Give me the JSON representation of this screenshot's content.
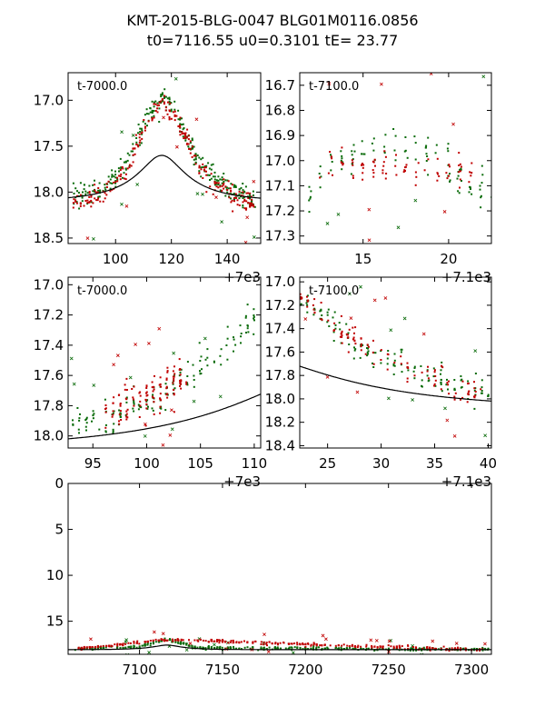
{
  "title": {
    "line1": "KMT-2015-BLG-0047 BLG01M0116.0856",
    "line2": "t0=7116.55 u0=0.3101 tE=  23.77"
  },
  "colors": {
    "green": "#0a6b0a",
    "red": "#c00000",
    "model": "#000000"
  },
  "chart_data": [
    {
      "type": "scatter",
      "panel_label": "t-7000.0",
      "offset_label": "+7e3",
      "x_range": [
        83,
        152
      ],
      "y_range": [
        18.56,
        16.7
      ],
      "y_inverted": true,
      "xticks": [
        100,
        120,
        140
      ],
      "yticks": [
        17.0,
        17.5,
        18.0,
        18.5
      ],
      "ytick_labels": [
        "17.0",
        "17.5",
        "18.0",
        "18.5"
      ],
      "series": [
        {
          "color": "green",
          "approx_trend": [
            [
              85,
              18.05
            ],
            [
              95,
              18.0
            ],
            [
              105,
              17.65
            ],
            [
              112,
              17.15
            ],
            [
              117,
              16.95
            ],
            [
              122,
              17.15
            ],
            [
              130,
              17.7
            ],
            [
              140,
              17.95
            ],
            [
              150,
              18.1
            ]
          ]
        },
        {
          "color": "red",
          "approx_trend": [
            [
              85,
              18.1
            ],
            [
              95,
              18.05
            ],
            [
              105,
              17.7
            ],
            [
              112,
              17.2
            ],
            [
              117,
              17.0
            ],
            [
              122,
              17.2
            ],
            [
              130,
              17.75
            ],
            [
              140,
              18.0
            ],
            [
              150,
              18.15
            ]
          ]
        }
      ]
    },
    {
      "type": "scatter",
      "panel_label": "t-7100.0",
      "offset_label": "+7.1e3",
      "x_range": [
        11.3,
        22.5
      ],
      "y_range": [
        17.33,
        16.65
      ],
      "y_inverted": true,
      "xticks": [
        15,
        20
      ],
      "yticks": [
        16.7,
        16.8,
        16.9,
        17.0,
        17.1,
        17.2,
        17.3
      ],
      "ytick_labels": [
        "16.7",
        "16.8",
        "16.9",
        "17.0",
        "17.1",
        "17.2",
        "17.3"
      ],
      "series": [
        {
          "color": "green",
          "approx_trend": [
            [
              11.5,
              17.15
            ],
            [
              13,
              17.03
            ],
            [
              15,
              16.95
            ],
            [
              17,
              16.93
            ],
            [
              19,
              16.98
            ],
            [
              21,
              17.08
            ],
            [
              22.5,
              17.15
            ]
          ]
        },
        {
          "color": "red",
          "approx_trend": [
            [
              12.5,
              17.05
            ],
            [
              13.5,
              17.02
            ],
            [
              21.5,
              17.05
            ]
          ]
        }
      ]
    },
    {
      "type": "scatter",
      "panel_label": "t-7000.0",
      "offset_label": "+7e3",
      "x_range": [
        92.7,
        110.6
      ],
      "y_range": [
        18.08,
        16.95
      ],
      "y_inverted": true,
      "xticks": [
        95,
        100,
        105,
        110
      ],
      "yticks": [
        17.0,
        17.2,
        17.4,
        17.6,
        17.8,
        18.0
      ],
      "ytick_labels": [
        "17.0",
        "17.2",
        "17.4",
        "17.6",
        "17.8",
        "18.0"
      ],
      "series": [
        {
          "color": "green",
          "approx_trend": [
            [
              93,
              17.93
            ],
            [
              96,
              17.88
            ],
            [
              100,
              17.78
            ],
            [
              103,
              17.65
            ],
            [
              106,
              17.5
            ],
            [
              109,
              17.3
            ],
            [
              110.5,
              17.2
            ]
          ]
        },
        {
          "color": "red",
          "approx_trend": [
            [
              96,
              17.85
            ],
            [
              99,
              17.75
            ],
            [
              101.5,
              17.7
            ],
            [
              103.5,
              17.6
            ]
          ]
        }
      ]
    },
    {
      "type": "scatter",
      "panel_label": "t-7100.0",
      "offset_label": "+7.1e3",
      "x_range": [
        22.4,
        40.3
      ],
      "y_range": [
        18.42,
        16.96
      ],
      "y_inverted": true,
      "xticks": [
        25,
        30,
        35,
        40
      ],
      "yticks": [
        17.0,
        17.2,
        17.4,
        17.6,
        17.8,
        18.0,
        18.2,
        18.4
      ],
      "ytick_labels": [
        "17.0",
        "17.2",
        "17.4",
        "17.6",
        "17.8",
        "18.0",
        "18.2",
        "18.4"
      ],
      "series": [
        {
          "color": "green",
          "approx_trend": [
            [
              22.5,
              17.15
            ],
            [
              25,
              17.3
            ],
            [
              29.5,
              17.65
            ],
            [
              32,
              17.72
            ],
            [
              35,
              17.82
            ],
            [
              38,
              17.9
            ],
            [
              40,
              17.92
            ]
          ]
        },
        {
          "color": "red",
          "approx_trend": [
            [
              22.5,
              17.12
            ],
            [
              26,
              17.42
            ],
            [
              34.5,
              17.82
            ],
            [
              37.5,
              17.92
            ],
            [
              39.5,
              17.95
            ]
          ]
        }
      ]
    },
    {
      "type": "scatter",
      "panel_label": "",
      "offset_label": "",
      "x_range": [
        7057,
        7312
      ],
      "y_range": [
        18.6,
        0
      ],
      "y_inverted": true,
      "xticks": [
        7100,
        7150,
        7200,
        7250,
        7300
      ],
      "yticks": [
        0,
        5,
        10,
        15
      ],
      "ytick_labels": [
        "0",
        "5",
        "10",
        "15"
      ],
      "series": [
        {
          "color": "green",
          "approx_trend": [
            [
              7060,
              18.0
            ],
            [
              7100,
              17.8
            ],
            [
              7117,
              16.95
            ],
            [
              7135,
              17.9
            ],
            [
              7310,
              18.1
            ]
          ]
        },
        {
          "color": "red",
          "approx_trend": [
            [
              7060,
              18.05
            ],
            [
              7117,
              17.0
            ],
            [
              7310,
              18.15
            ]
          ]
        }
      ]
    }
  ]
}
